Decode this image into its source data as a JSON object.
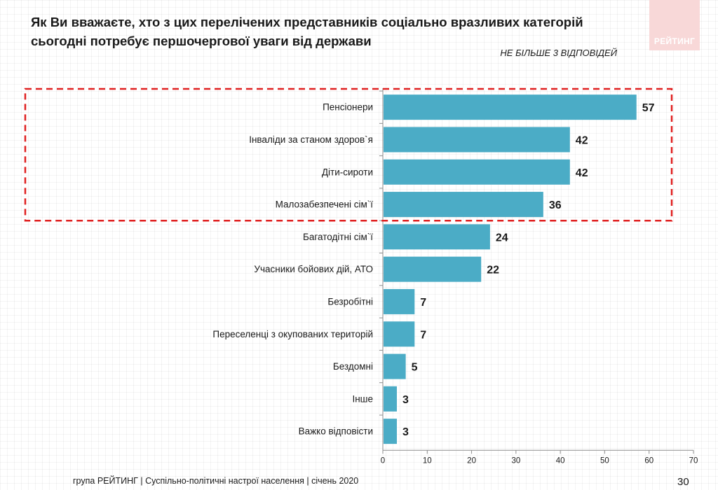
{
  "header": {
    "title": "Як Ви вважаєте, хто з цих перелічених представників соціально вразливих категорій сьогодні потребує першочергової уваги від держави",
    "note": "НЕ БІЛЬШЕ 3 ВІДПОВІДЕЙ",
    "logo": "РЕЙТИНГ"
  },
  "footer": {
    "source": "група РЕЙТИНГ | Суспільно-політичні настрої населення  | січень  2020",
    "page": "30"
  },
  "colors": {
    "bar": "#4bacc6",
    "highlight_border": "#e02020"
  },
  "chart_data": {
    "type": "bar",
    "orientation": "horizontal",
    "categories": [
      "Пенсіонери",
      "Інваліди за станом здоров`я",
      "Діти-сироти",
      "Малозабезпечені сім`ї",
      "Багатодітні сім`ї",
      "Учасники бойових дій, АТО",
      "Безробітні",
      "Переселенці з окупованих територій",
      "Бездомні",
      "Інше",
      "Важко відповісти"
    ],
    "values": [
      57,
      42,
      42,
      36,
      24,
      22,
      7,
      7,
      5,
      3,
      3
    ],
    "xlim": [
      0,
      70
    ],
    "xticks": [
      0,
      10,
      20,
      30,
      40,
      50,
      60,
      70
    ],
    "highlighted_top": 4,
    "grid": false
  }
}
